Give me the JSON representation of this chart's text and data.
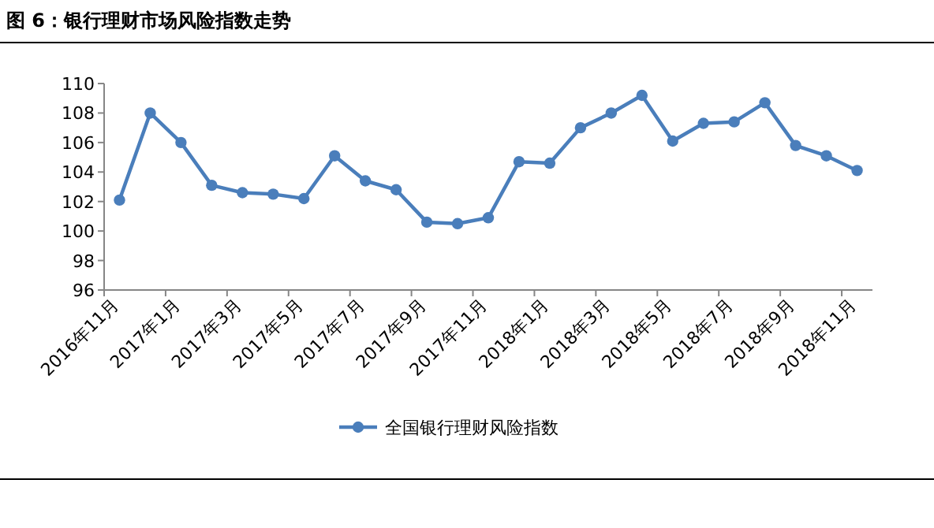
{
  "chart_data": {
    "type": "line",
    "title": "图 6：银行理财市场风险指数走势",
    "categories": [
      "2016年11月",
      null,
      "2017年1月",
      null,
      "2017年3月",
      null,
      "2017年5月",
      null,
      "2017年7月",
      null,
      "2017年9月",
      null,
      "2017年11月",
      null,
      "2018年1月",
      null,
      "2018年3月",
      null,
      "2018年5月",
      null,
      "2018年7月",
      null,
      "2018年9月",
      null,
      "2018年11月"
    ],
    "series": [
      {
        "name": "全国银行理财风险指数",
        "color": "#4a7ebb",
        "values": [
          102.1,
          108.0,
          106.0,
          103.1,
          102.6,
          102.5,
          102.2,
          105.1,
          103.4,
          102.8,
          100.6,
          100.5,
          100.9,
          104.7,
          104.6,
          107.0,
          108.0,
          109.2,
          106.1,
          107.3,
          107.4,
          108.7,
          105.8,
          105.1,
          104.1
        ]
      }
    ],
    "ylim": [
      96,
      110
    ],
    "yticks": [
      96,
      98,
      100,
      102,
      104,
      106,
      108,
      110
    ],
    "legend": "bottom",
    "marker": "circle",
    "line_style": "solid",
    "grid": false
  }
}
